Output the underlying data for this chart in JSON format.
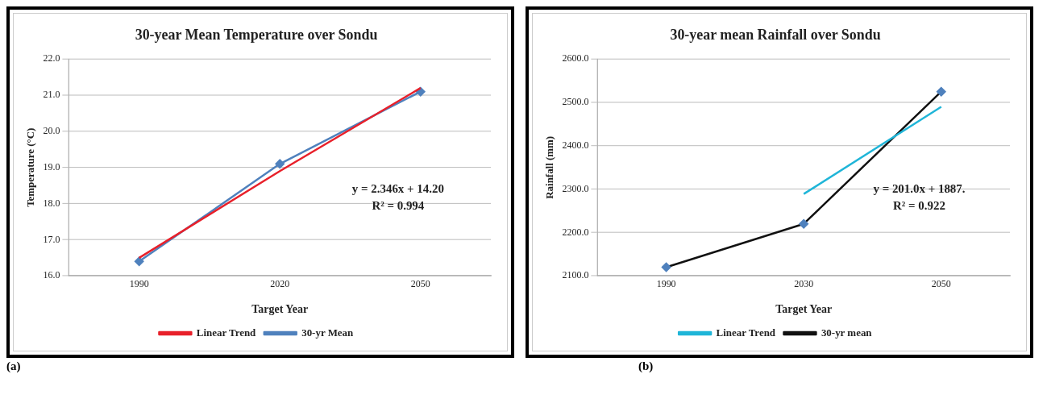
{
  "chart_data": [
    {
      "type": "line",
      "title": "30-year Mean Temperature over Sondu",
      "xlabel": "Target Year",
      "ylabel": "Temperature (°C)",
      "categories": [
        "1990",
        "2020",
        "2050"
      ],
      "ylim": [
        16,
        22
      ],
      "yticks": [
        {
          "value": 16,
          "label": "16.0"
        },
        {
          "value": 17,
          "label": "17.0"
        },
        {
          "value": 18,
          "label": "18.0"
        },
        {
          "value": 19,
          "label": "19.0"
        },
        {
          "value": 20,
          "label": "20.0"
        },
        {
          "value": 21,
          "label": "21.0"
        },
        {
          "value": 22,
          "label": "22.0"
        }
      ],
      "grid": "y",
      "legend": "bottom",
      "series": [
        {
          "name": "30-yr Mean",
          "color": "#4f81bd",
          "values": [
            16.4,
            19.1,
            21.1
          ],
          "marker": "diamond"
        },
        {
          "name": "Linear Trend",
          "color": "#e8202a",
          "values": [
            16.5,
            18.9,
            21.2
          ],
          "marker": "none"
        }
      ],
      "annotations": [
        "y = 2.346x + 14.20",
        "R² = 0.994",
        "(a)"
      ]
    },
    {
      "type": "line",
      "title": "30-year mean Rainfall over Sondu",
      "xlabel": "Target Year",
      "ylabel": "Rainfall (mm)",
      "categories": [
        "1990",
        "2030",
        "2050"
      ],
      "ylim": [
        2100,
        2600
      ],
      "yticks": [
        {
          "value": 2100,
          "label": "2100.0"
        },
        {
          "value": 2200,
          "label": "2200.0"
        },
        {
          "value": 2300,
          "label": "2300.0"
        },
        {
          "value": 2400,
          "label": "2400.0"
        },
        {
          "value": 2500,
          "label": "2500.0"
        },
        {
          "value": 2600,
          "label": "2600.0"
        }
      ],
      "grid": "y",
      "legend": "bottom",
      "series": [
        {
          "name": "30-yr mean",
          "color": "#111111",
          "values": [
            2120,
            2220,
            2525
          ],
          "marker": "diamond"
        },
        {
          "name": "Linear Trend",
          "color": "#1fb5d8",
          "values": [
            null,
            2289,
            2490
          ],
          "marker": "none"
        }
      ],
      "annotations": [
        "y = 201.0x + 1887.",
        "R² = 0.922",
        "(b)"
      ]
    }
  ]
}
